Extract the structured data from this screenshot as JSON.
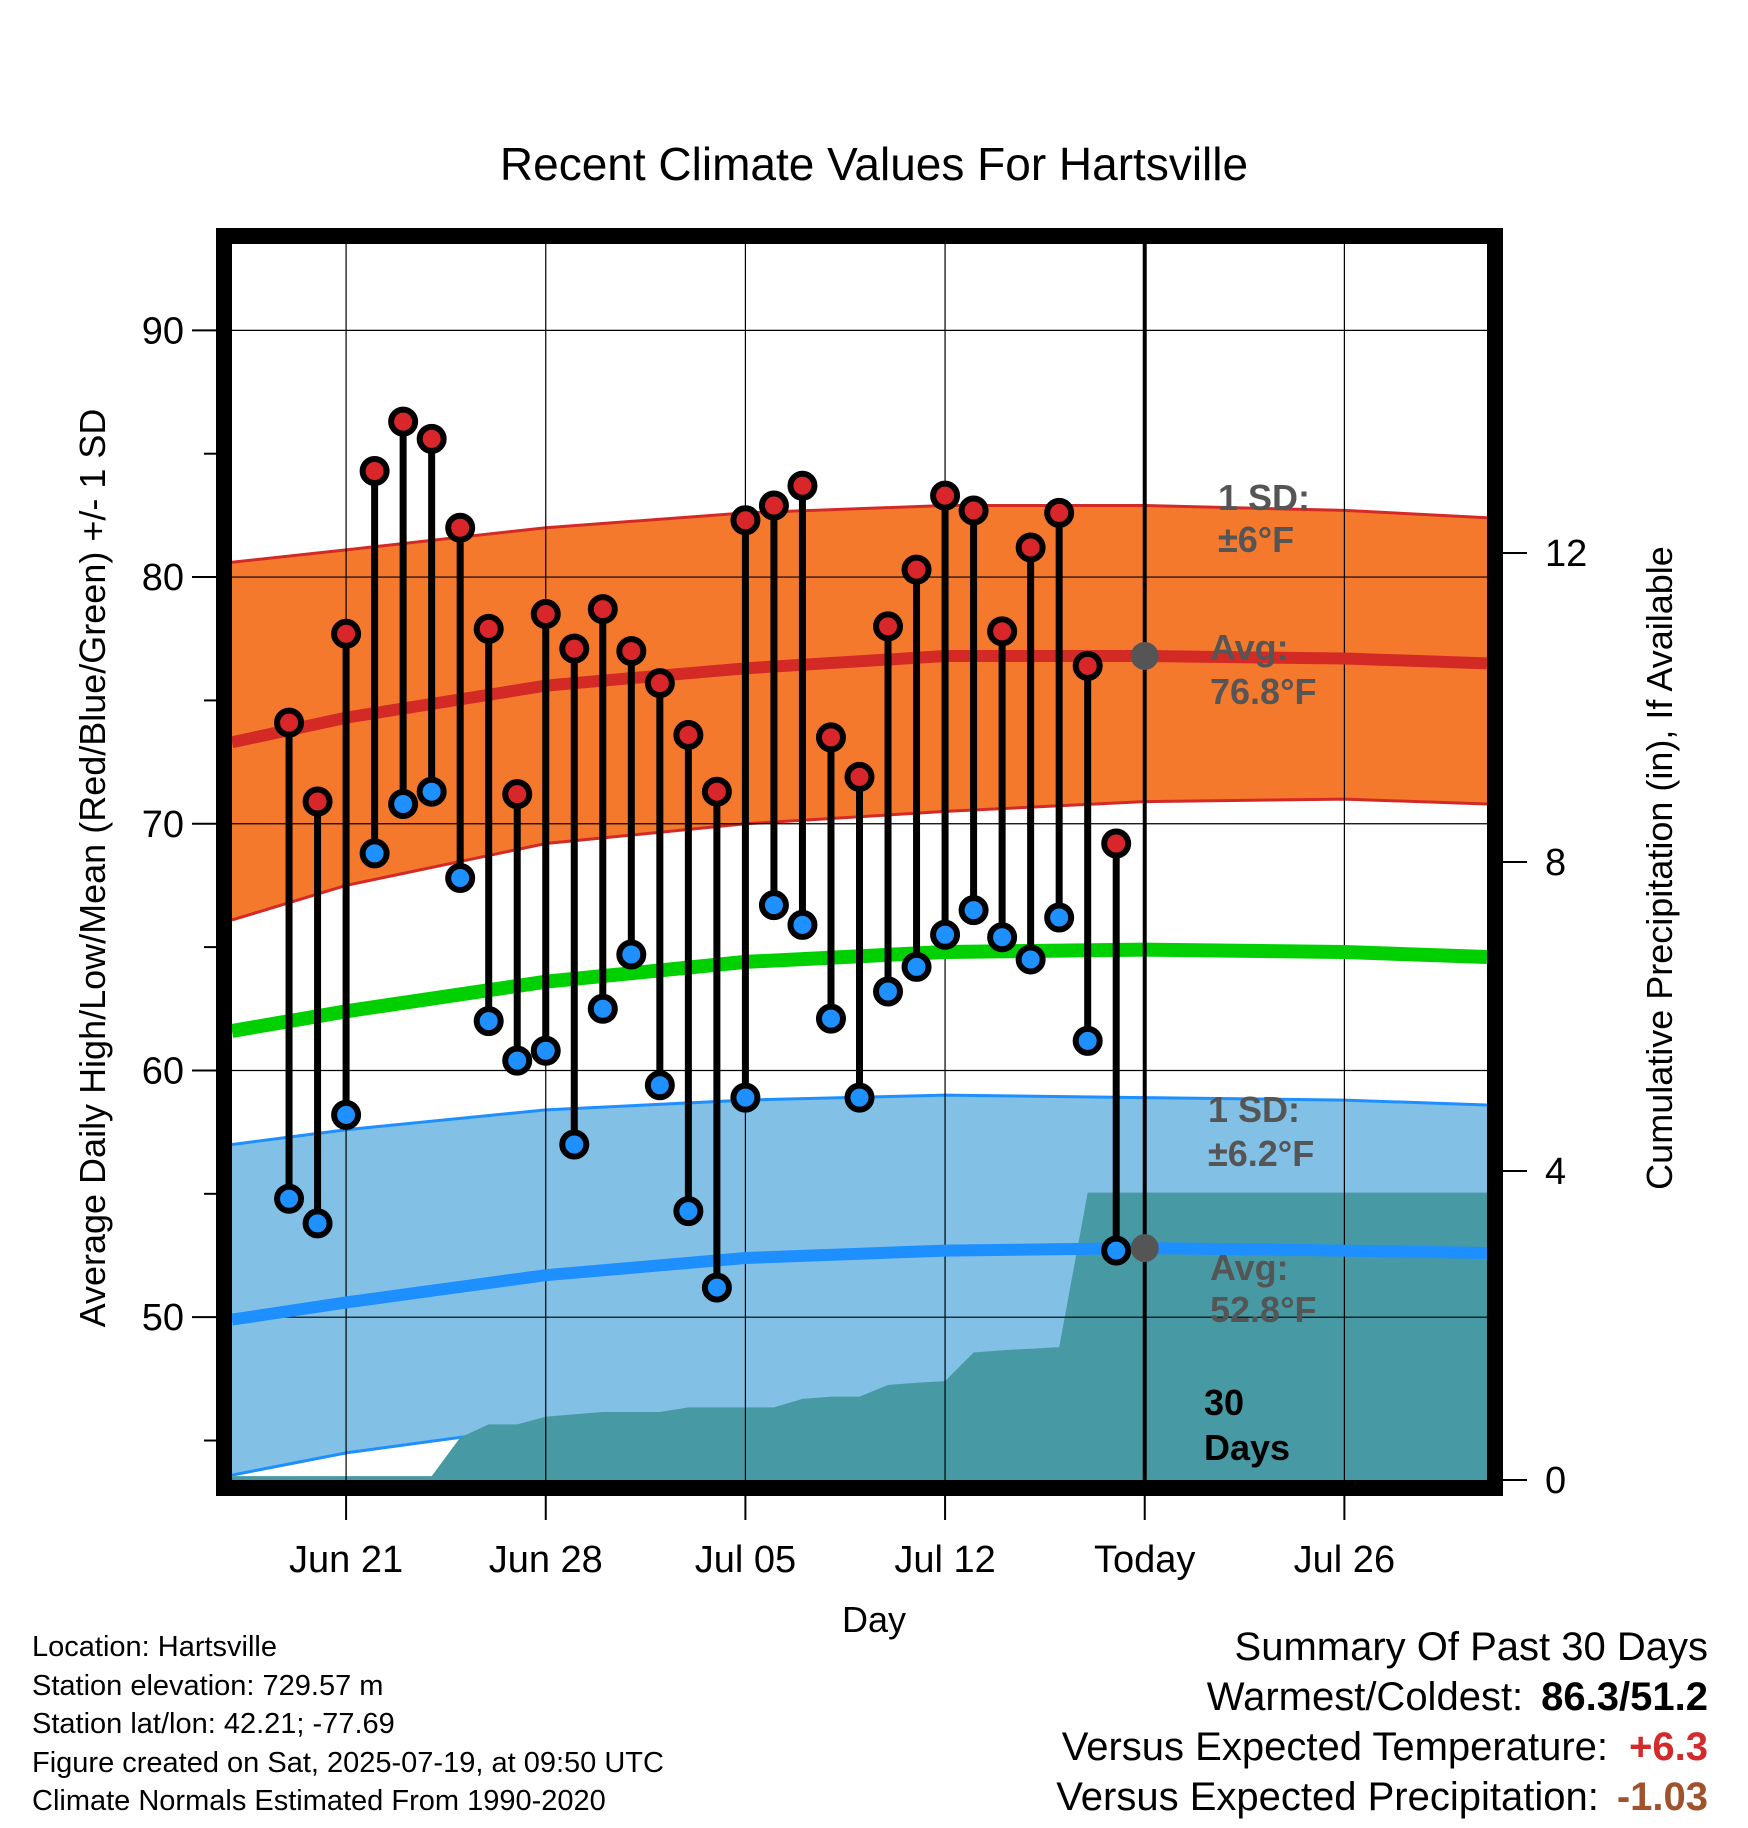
{
  "chart_data": {
    "type": "line",
    "title": "Recent Climate Values For Hartsville",
    "xlabel": "Day",
    "ylabel_left": "Average Daily High/Low/Mean (Red/Blue/Green) +/- 1 SD",
    "ylabel_right": "Cumulative Precipitation (in), If Available",
    "ylim": [
      43.4,
      93.5
    ],
    "y2lim": [
      0,
      16
    ],
    "y_ticks": [
      50,
      60,
      70,
      80,
      90
    ],
    "y_ticks_minor": [
      45,
      55,
      65,
      75,
      85
    ],
    "y2_ticks": [
      0,
      4,
      8,
      12
    ],
    "xlim": [
      "2025-06-17",
      "2025-07-31"
    ],
    "x_ticks": [
      {
        "date": "2025-06-21",
        "label": "Jun 21"
      },
      {
        "date": "2025-06-28",
        "label": "Jun 28"
      },
      {
        "date": "2025-07-05",
        "label": "Jul 05"
      },
      {
        "date": "2025-07-12",
        "label": "Jul 12"
      },
      {
        "date": "2025-07-19",
        "label": "Today"
      },
      {
        "date": "2025-07-26",
        "label": "Jul 26"
      }
    ],
    "today": "2025-07-19",
    "grid": true,
    "daily_observations": {
      "dates": [
        "2025-06-19",
        "2025-06-20",
        "2025-06-21",
        "2025-06-22",
        "2025-06-23",
        "2025-06-24",
        "2025-06-25",
        "2025-06-26",
        "2025-06-27",
        "2025-06-28",
        "2025-06-29",
        "2025-06-30",
        "2025-07-01",
        "2025-07-02",
        "2025-07-03",
        "2025-07-04",
        "2025-07-05",
        "2025-07-06",
        "2025-07-07",
        "2025-07-08",
        "2025-07-09",
        "2025-07-10",
        "2025-07-11",
        "2025-07-12",
        "2025-07-13",
        "2025-07-14",
        "2025-07-15",
        "2025-07-16",
        "2025-07-17",
        "2025-07-18"
      ],
      "high": [
        74.1,
        70.9,
        77.7,
        84.3,
        86.3,
        85.6,
        82.0,
        77.9,
        71.2,
        78.5,
        77.1,
        78.7,
        77.0,
        75.7,
        73.6,
        71.3,
        82.3,
        82.9,
        83.7,
        73.5,
        71.9,
        78.0,
        80.3,
        83.3,
        82.7,
        77.8,
        81.2,
        82.6,
        76.4,
        69.2
      ],
      "low": [
        54.8,
        53.8,
        58.2,
        68.8,
        70.8,
        71.3,
        67.8,
        62.0,
        60.4,
        60.8,
        57.0,
        62.5,
        64.7,
        59.4,
        54.3,
        51.2,
        58.9,
        66.7,
        65.9,
        62.1,
        58.9,
        63.2,
        64.2,
        65.5,
        66.5,
        65.4,
        64.5,
        66.2,
        61.2,
        52.7
      ]
    },
    "normals": {
      "dates": [
        "2025-06-17",
        "2025-06-21",
        "2025-06-28",
        "2025-07-05",
        "2025-07-12",
        "2025-07-19",
        "2025-07-26",
        "2025-07-31"
      ],
      "avg_high": [
        73.3,
        74.3,
        75.6,
        76.3,
        76.8,
        76.8,
        76.7,
        76.5
      ],
      "avg_high_plus_1sd": [
        80.6,
        81.1,
        82.0,
        82.6,
        82.9,
        82.9,
        82.7,
        82.4
      ],
      "avg_high_minus_1sd": [
        66.1,
        67.5,
        69.2,
        70.0,
        70.5,
        70.9,
        71.0,
        70.8
      ],
      "avg_low": [
        49.9,
        50.6,
        51.7,
        52.4,
        52.7,
        52.8,
        52.7,
        52.6
      ],
      "avg_low_plus_1sd": [
        57.0,
        57.6,
        58.4,
        58.8,
        59.0,
        58.9,
        58.8,
        58.6
      ],
      "avg_low_minus_1sd": [
        43.6,
        44.5,
        45.6,
        46.2,
        46.6,
        46.9,
        47.0,
        47.0
      ],
      "avg_mean": [
        61.6,
        62.4,
        63.6,
        64.4,
        64.8,
        64.9,
        64.8,
        64.6
      ]
    },
    "cumulative_precipitation": {
      "dates": [
        "2025-06-17",
        "2025-06-22",
        "2025-06-23",
        "2025-06-24",
        "2025-06-25",
        "2025-06-26",
        "2025-06-27",
        "2025-06-28",
        "2025-06-29",
        "2025-06-30",
        "2025-07-01",
        "2025-07-02",
        "2025-07-03",
        "2025-07-04",
        "2025-07-05",
        "2025-07-06",
        "2025-07-07",
        "2025-07-08",
        "2025-07-09",
        "2025-07-10",
        "2025-07-11",
        "2025-07-12",
        "2025-07-13",
        "2025-07-14",
        "2025-07-15",
        "2025-07-16",
        "2025-07-17",
        "2025-07-18",
        "2025-07-31"
      ],
      "values": [
        0.05,
        0.05,
        0.05,
        0.05,
        0.55,
        0.72,
        0.72,
        0.82,
        0.85,
        0.88,
        0.88,
        0.88,
        0.94,
        0.94,
        0.94,
        0.94,
        1.05,
        1.08,
        1.08,
        1.23,
        1.26,
        1.28,
        1.65,
        1.68,
        1.7,
        1.72,
        3.72,
        3.72,
        3.72
      ]
    },
    "annotations": {
      "high_sd_line1": "1 SD:",
      "high_sd_line2": "±6°F",
      "high_avg_line1": "Avg:",
      "high_avg_line2": "76.8°F",
      "low_sd_line1": "1 SD:",
      "low_sd_line2": "±6.2°F",
      "low_avg_line1": "Avg:",
      "low_avg_line2": "52.8°F",
      "days_line1": "30",
      "days_line2": "Days"
    },
    "colors": {
      "high_band": "#f5792d",
      "high_line": "#d42a26",
      "high_dot": "#d8262b",
      "low_band": "#82c0e6",
      "low_line": "#1e8fff",
      "low_dot": "#1e90ff",
      "mean_line": "#00d000",
      "precip_fill": "#479aa4",
      "today_dot": "#555555"
    }
  },
  "footer": {
    "location": "Location: Hartsville",
    "elevation": "Station elevation: 729.57 m",
    "latlon": "Station lat/lon: 42.21; -77.69",
    "created": "Figure created on Sat, 2025-07-19, at 09:50 UTC",
    "normals": "Climate Normals Estimated From 1990-2020"
  },
  "summary": {
    "title": "Summary Of Past 30 Days",
    "warm_cold_label": "Warmest/Coldest:",
    "warm_cold_value": "86.3/51.2",
    "temp_label": "Versus Expected Temperature:",
    "temp_value": "+6.3",
    "precip_label": "Versus Expected Precipitation:",
    "precip_value": "-1.03",
    "temp_color": "#d22b2b",
    "precip_color": "#a0522d"
  }
}
